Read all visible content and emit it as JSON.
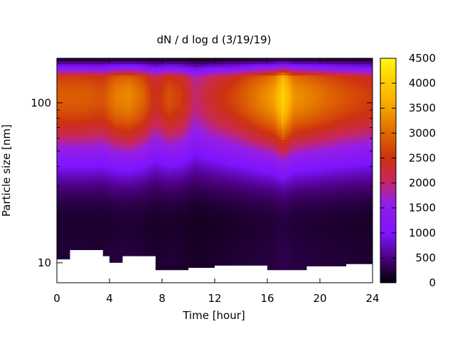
{
  "chart_data": {
    "type": "heatmap",
    "title": "dN / d log d (3/19/19)",
    "xlabel": "Time [hour]",
    "ylabel": "Particle size [nm]",
    "x_ticks": [
      0,
      4,
      8,
      12,
      16,
      20,
      24
    ],
    "xlim": [
      0,
      24
    ],
    "y_scale": "log",
    "ylim": [
      7.5,
      190
    ],
    "y_ticks": [
      10,
      100
    ],
    "y_minor_ticks": [
      20,
      30,
      40,
      50,
      60,
      70,
      80,
      90
    ],
    "colorbar": {
      "ticks": [
        0,
        500,
        1000,
        1500,
        2000,
        2500,
        3000,
        3500,
        4000,
        4500
      ],
      "range": [
        0,
        4500
      ],
      "palette": "gnuplot-hot (black-purple-red-orange-yellow)"
    },
    "mode_diameter_nm": 110,
    "peak_concentration_by_hour": [
      {
        "hour": 0,
        "value": 2900
      },
      {
        "hour": 2,
        "value": 2900
      },
      {
        "hour": 3.5,
        "value": 2800
      },
      {
        "hour": 4.5,
        "value": 3200
      },
      {
        "hour": 5.5,
        "value": 3300
      },
      {
        "hour": 6.5,
        "value": 3000
      },
      {
        "hour": 7.5,
        "value": 2400
      },
      {
        "hour": 8.5,
        "value": 2800
      },
      {
        "hour": 9.5,
        "value": 2600
      },
      {
        "hour": 10.5,
        "value": 2000
      },
      {
        "hour": 12,
        "value": 2400
      },
      {
        "hour": 13.5,
        "value": 2700
      },
      {
        "hour": 15,
        "value": 3100
      },
      {
        "hour": 16.5,
        "value": 3500
      },
      {
        "hour": 17.2,
        "value": 4100
      },
      {
        "hour": 18,
        "value": 3400
      },
      {
        "hour": 20,
        "value": 3100
      },
      {
        "hour": 22,
        "value": 2800
      },
      {
        "hour": 24,
        "value": 2600
      }
    ],
    "lower_detection_limit_nm": [
      {
        "hour": 0,
        "value": 10.5
      },
      {
        "hour": 1,
        "value": 12
      },
      {
        "hour": 3.5,
        "value": 11
      },
      {
        "hour": 4,
        "value": 10
      },
      {
        "hour": 5,
        "value": 11
      },
      {
        "hour": 6.5,
        "value": 11
      },
      {
        "hour": 7.5,
        "value": 9
      },
      {
        "hour": 10,
        "value": 9.3
      },
      {
        "hour": 12,
        "value": 9.6
      },
      {
        "hour": 16,
        "value": 9
      },
      {
        "hour": 19,
        "value": 9.5
      },
      {
        "hour": 22,
        "value": 9.8
      },
      {
        "hour": 24,
        "value": 10.3
      }
    ]
  }
}
